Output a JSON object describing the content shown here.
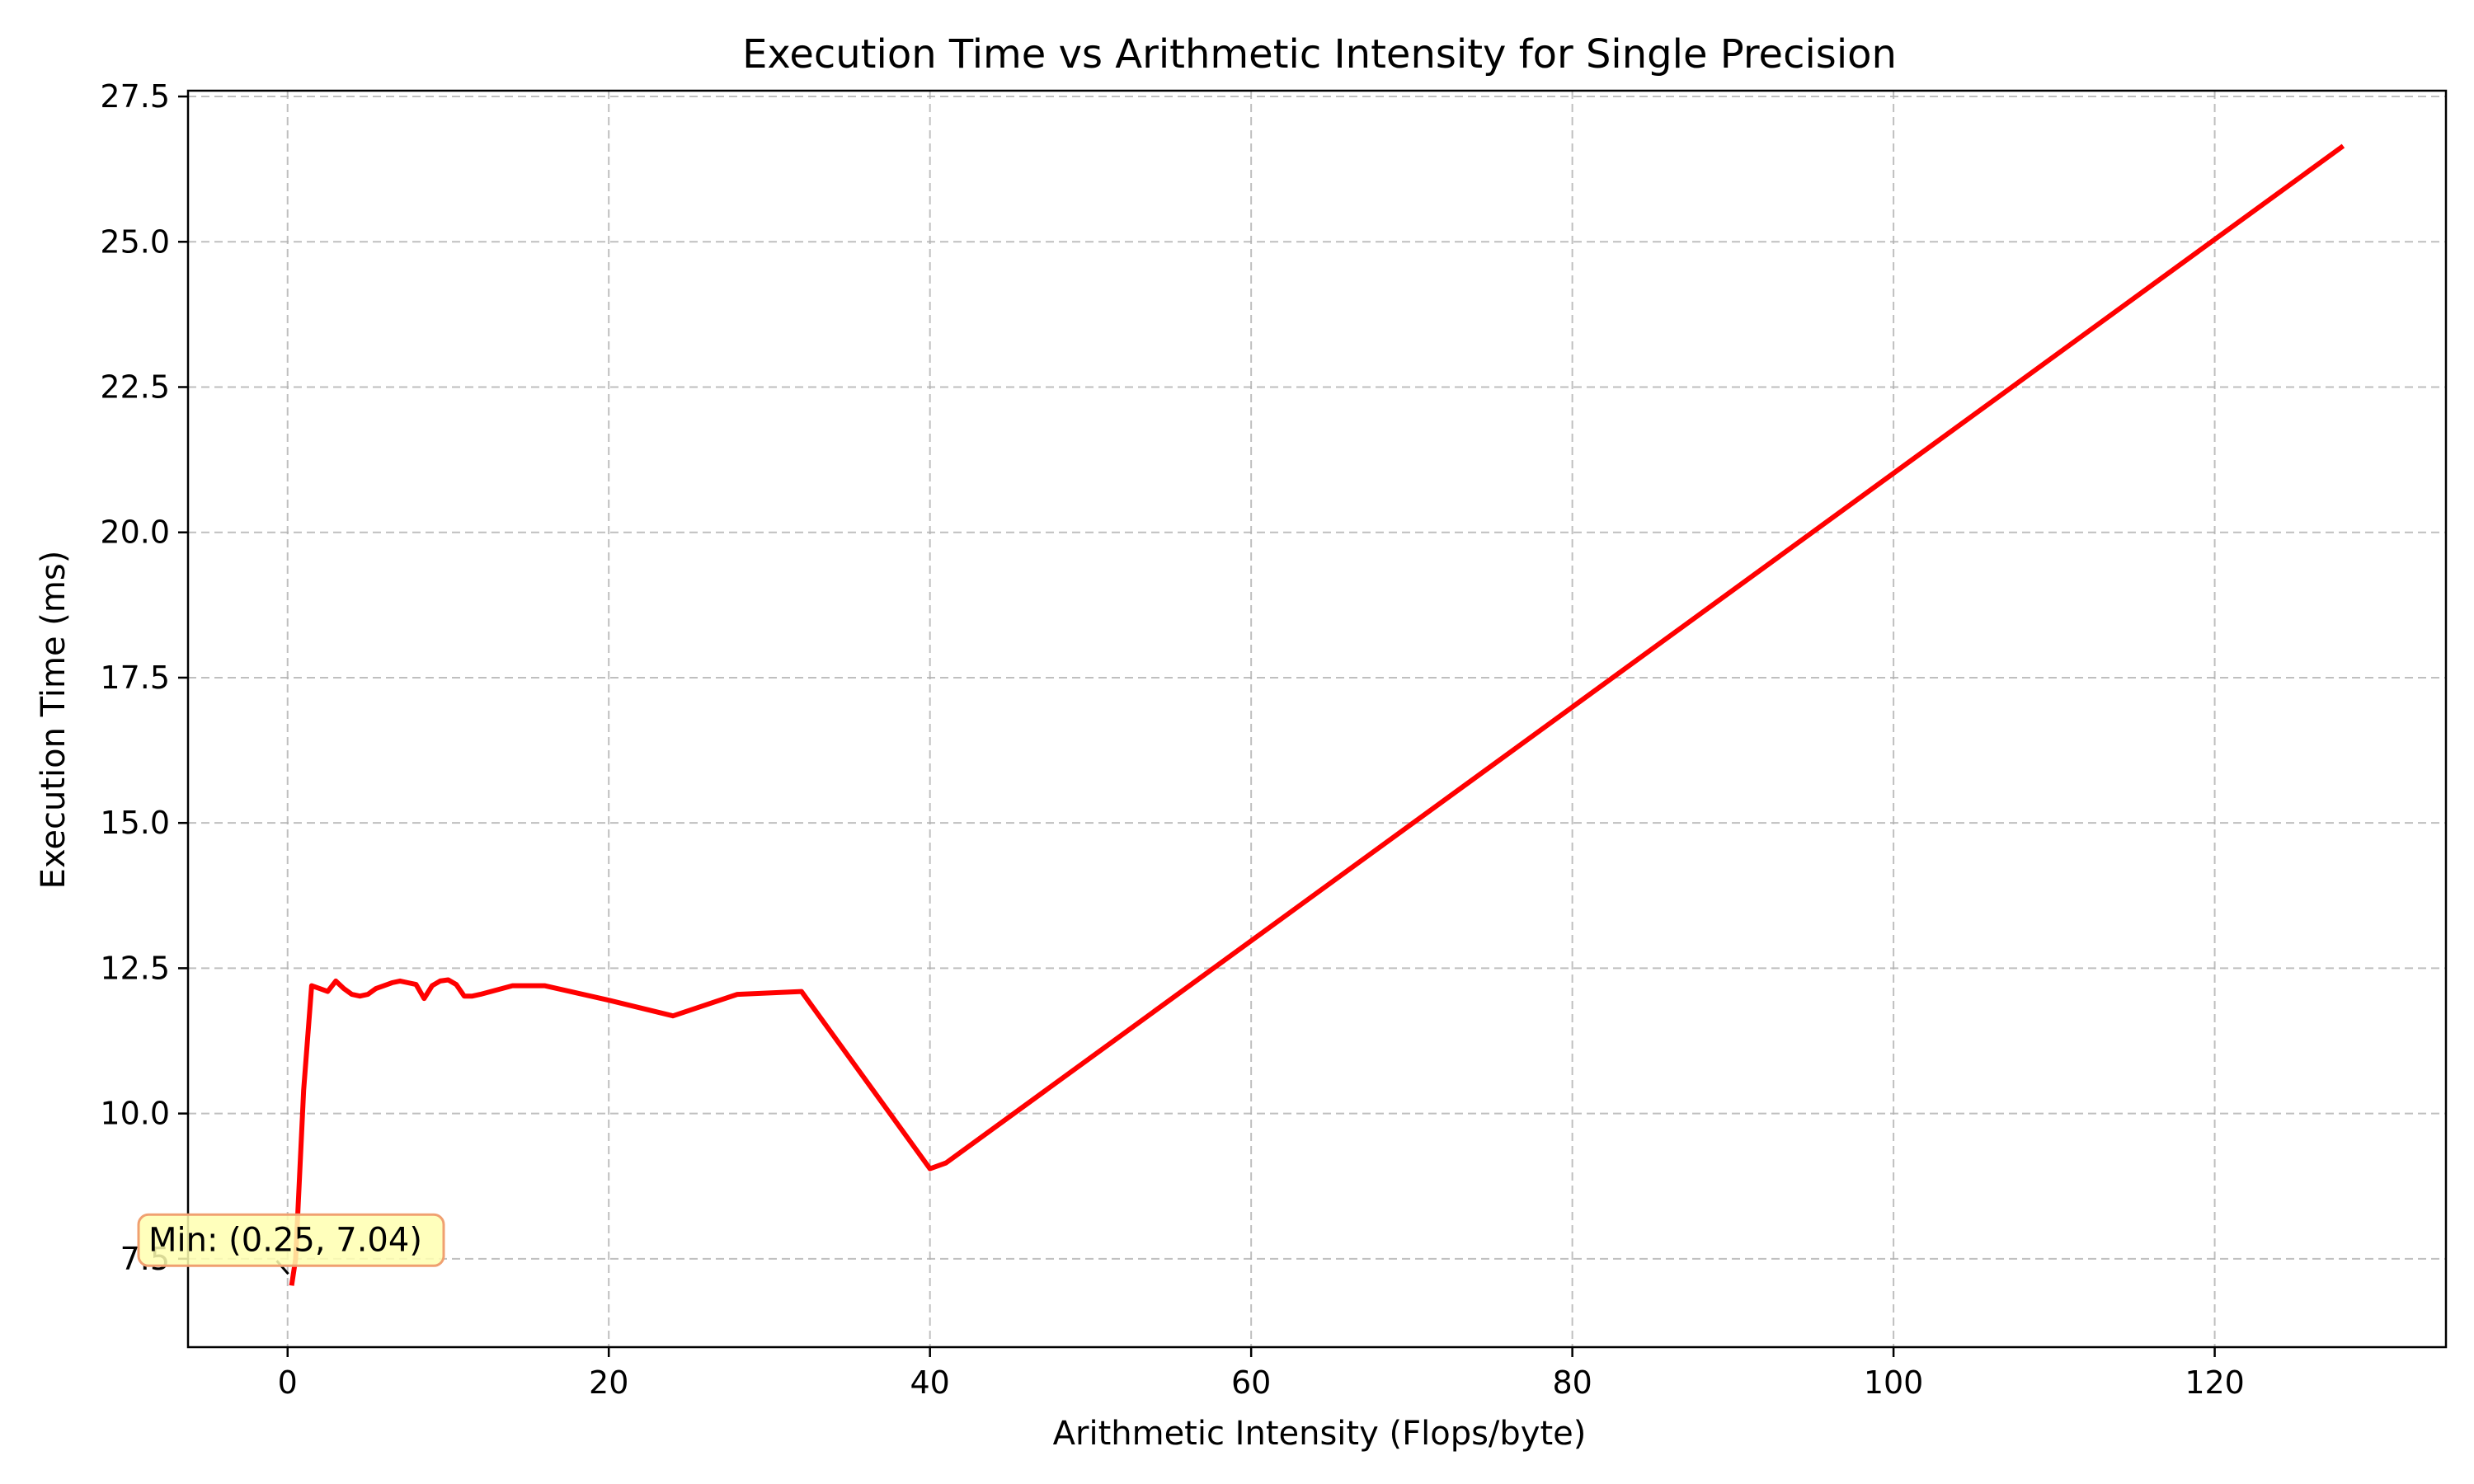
{
  "chart_data": {
    "type": "line",
    "title": "Execution Time vs Arithmetic Intensity for Single Precision",
    "xlabel": "Arithmetic Intensity (Flops/byte)",
    "ylabel": "Execution Time (ms)",
    "xlim": [
      -6.2,
      134.4
    ],
    "ylim": [
      5.98,
      27.6
    ],
    "xticks": [
      0,
      20,
      40,
      60,
      80,
      100,
      120
    ],
    "yticks": [
      7.5,
      10.0,
      12.5,
      15.0,
      17.5,
      20.0,
      22.5,
      25.0,
      27.5
    ],
    "xtick_labels": [
      "0",
      "20",
      "40",
      "60",
      "80",
      "100",
      "120"
    ],
    "ytick_labels": [
      "7.5",
      "10.0",
      "12.5",
      "15.0",
      "17.5",
      "20.0",
      "22.5",
      "25.0",
      "27.5"
    ],
    "grid": true,
    "series": [
      {
        "color": "#ff0000",
        "x": [
          0.25,
          0.5,
          1.0,
          1.5,
          2.0,
          2.5,
          3.0,
          3.5,
          4.0,
          4.5,
          5.0,
          5.5,
          6.0,
          6.5,
          7.0,
          7.5,
          8.0,
          8.5,
          9.0,
          9.5,
          10.0,
          10.5,
          11.0,
          11.5,
          12.0,
          14.0,
          16.0,
          20.0,
          24.0,
          28.0,
          32.0,
          40.0,
          41.0,
          128.0
        ],
        "y": [
          7.04,
          7.5,
          10.4,
          12.2,
          12.15,
          12.1,
          12.28,
          12.15,
          12.05,
          12.02,
          12.05,
          12.15,
          12.2,
          12.25,
          12.28,
          12.25,
          12.22,
          11.98,
          12.2,
          12.28,
          12.3,
          12.22,
          12.02,
          12.02,
          12.05,
          12.2,
          12.2,
          11.95,
          11.68,
          12.05,
          12.1,
          9.05,
          9.15,
          26.65
        ]
      }
    ],
    "annotations": [
      {
        "text": "Min: (0.25, 7.04)",
        "x": 0.25,
        "y": 7.04,
        "background": "#ffffb0",
        "border": "#f0a070"
      }
    ]
  }
}
